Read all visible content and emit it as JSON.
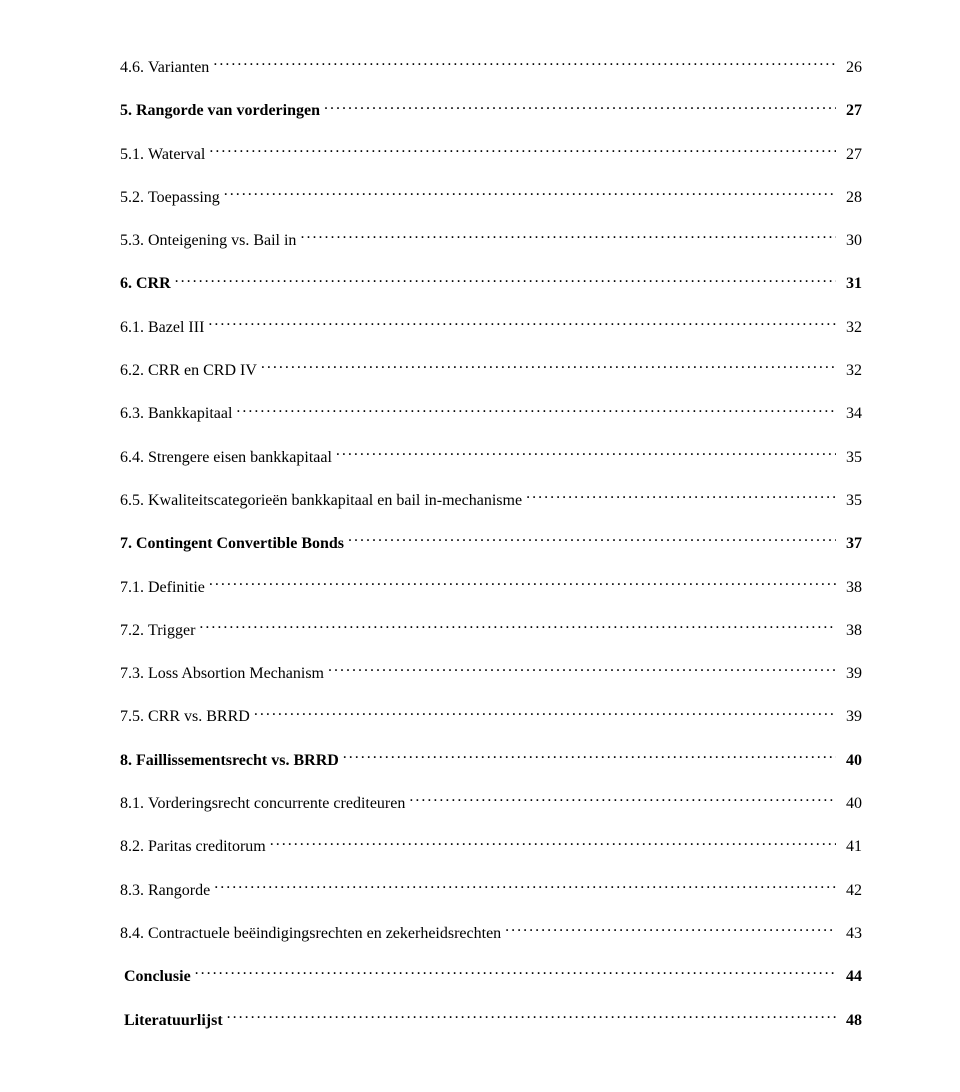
{
  "document": {
    "font_family": "Times New Roman",
    "font_size_pt": 12,
    "text_color": "#000000",
    "background_color": "#ffffff",
    "leader_char": "."
  },
  "toc": {
    "entries": [
      {
        "num": "4.6.",
        "title": "Varianten",
        "page": "26",
        "level": 2,
        "bold": false
      },
      {
        "num": "5.",
        "title": "Rangorde van vorderingen",
        "page": "27",
        "level": 1,
        "bold": true
      },
      {
        "num": "5.1.",
        "title": "Waterval",
        "page": "27",
        "level": 2,
        "bold": false
      },
      {
        "num": "5.2.",
        "title": "Toepassing",
        "page": "28",
        "level": 2,
        "bold": false
      },
      {
        "num": "5.3.",
        "title": "Onteigening vs. Bail in",
        "page": "30",
        "level": 2,
        "bold": false
      },
      {
        "num": "6.",
        "title": "CRR",
        "page": "31",
        "level": 1,
        "bold": true
      },
      {
        "num": "6.1.",
        "title": "Bazel III",
        "page": "32",
        "level": 2,
        "bold": false
      },
      {
        "num": "6.2.",
        "title": "CRR en CRD IV",
        "page": "32",
        "level": 2,
        "bold": false
      },
      {
        "num": "6.3.",
        "title": "Bankkapitaal",
        "page": "34",
        "level": 2,
        "bold": false
      },
      {
        "num": "6.4.",
        "title": "Strengere eisen bankkapitaal",
        "page": "35",
        "level": 2,
        "bold": false
      },
      {
        "num": "6.5.",
        "title": "Kwaliteitscategorieën bankkapitaal en bail in-mechanisme",
        "page": "35",
        "level": 2,
        "bold": false
      },
      {
        "num": "7.",
        "title": "Contingent Convertible Bonds",
        "page": "37",
        "level": 1,
        "bold": true
      },
      {
        "num": "7.1.",
        "title": "Definitie",
        "page": "38",
        "level": 2,
        "bold": false
      },
      {
        "num": "7.2.",
        "title": "Trigger",
        "page": "38",
        "level": 2,
        "bold": false
      },
      {
        "num": "7.3.",
        "title": "Loss Absortion Mechanism",
        "page": "39",
        "level": 2,
        "bold": false
      },
      {
        "num": "7.5.",
        "title": "CRR vs. BRRD",
        "page": "39",
        "level": 2,
        "bold": false
      },
      {
        "num": "8.",
        "title": "Faillissementsrecht vs. BRRD",
        "page": "40",
        "level": 1,
        "bold": true
      },
      {
        "num": "8.1.",
        "title": "Vorderingsrecht concurrente crediteuren",
        "page": "40",
        "level": 2,
        "bold": false
      },
      {
        "num": "8.2.",
        "title": "Paritas creditorum",
        "page": "41",
        "level": 2,
        "bold": false
      },
      {
        "num": "8.3.",
        "title": "Rangorde",
        "page": "42",
        "level": 2,
        "bold": false
      },
      {
        "num": "8.4.",
        "title": "Contractuele beëindigingsrechten en zekerheidsrechten",
        "page": "43",
        "level": 2,
        "bold": false
      },
      {
        "num": "",
        "title": "Conclusie",
        "page": "44",
        "level": 1,
        "bold": true
      },
      {
        "num": "",
        "title": "Literatuurlijst",
        "page": "48",
        "level": 1,
        "bold": true
      }
    ]
  }
}
